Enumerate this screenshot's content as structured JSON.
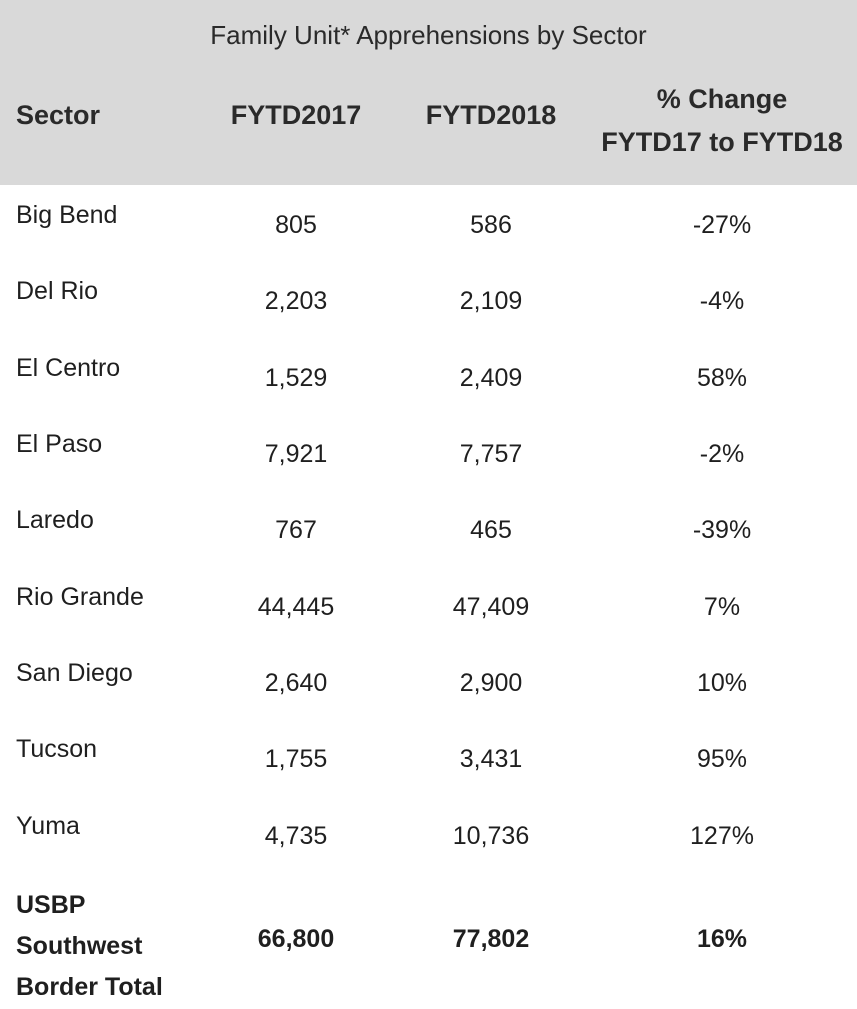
{
  "table": {
    "caption": "Family Unit* Apprehensions by Sector",
    "headers": {
      "sector": "Sector",
      "fy2017": "FYTD2017",
      "fy2018": "FYTD2018",
      "change_line1": "% Change",
      "change_line2": "FYTD17 to FYTD18"
    },
    "rows": [
      {
        "sector": "Big Bend",
        "fy2017": "805",
        "fy2018": "586",
        "change": "-27%"
      },
      {
        "sector": "Del Rio",
        "fy2017": "2,203",
        "fy2018": "2,109",
        "change": "-4%"
      },
      {
        "sector": "El Centro",
        "fy2017": "1,529",
        "fy2018": "2,409",
        "change": "58%"
      },
      {
        "sector": "El Paso",
        "fy2017": "7,921",
        "fy2018": "7,757",
        "change": "-2%"
      },
      {
        "sector": "Laredo",
        "fy2017": "767",
        "fy2018": "465",
        "change": "-39%"
      },
      {
        "sector": "Rio Grande",
        "fy2017": "44,445",
        "fy2018": "47,409",
        "change": "7%"
      },
      {
        "sector": "San Diego",
        "fy2017": "2,640",
        "fy2018": "2,900",
        "change": "10%"
      },
      {
        "sector": "Tucson",
        "fy2017": "1,755",
        "fy2018": "3,431",
        "change": "95%"
      },
      {
        "sector": "Yuma",
        "fy2017": "4,735",
        "fy2018": "10,736",
        "change": "127%"
      }
    ],
    "total": {
      "label_line1": "USBP",
      "label_line2": "Southwest",
      "label_line3": "Border Total",
      "fy2017": "66,800",
      "fy2018": "77,802",
      "change": "16%"
    }
  }
}
